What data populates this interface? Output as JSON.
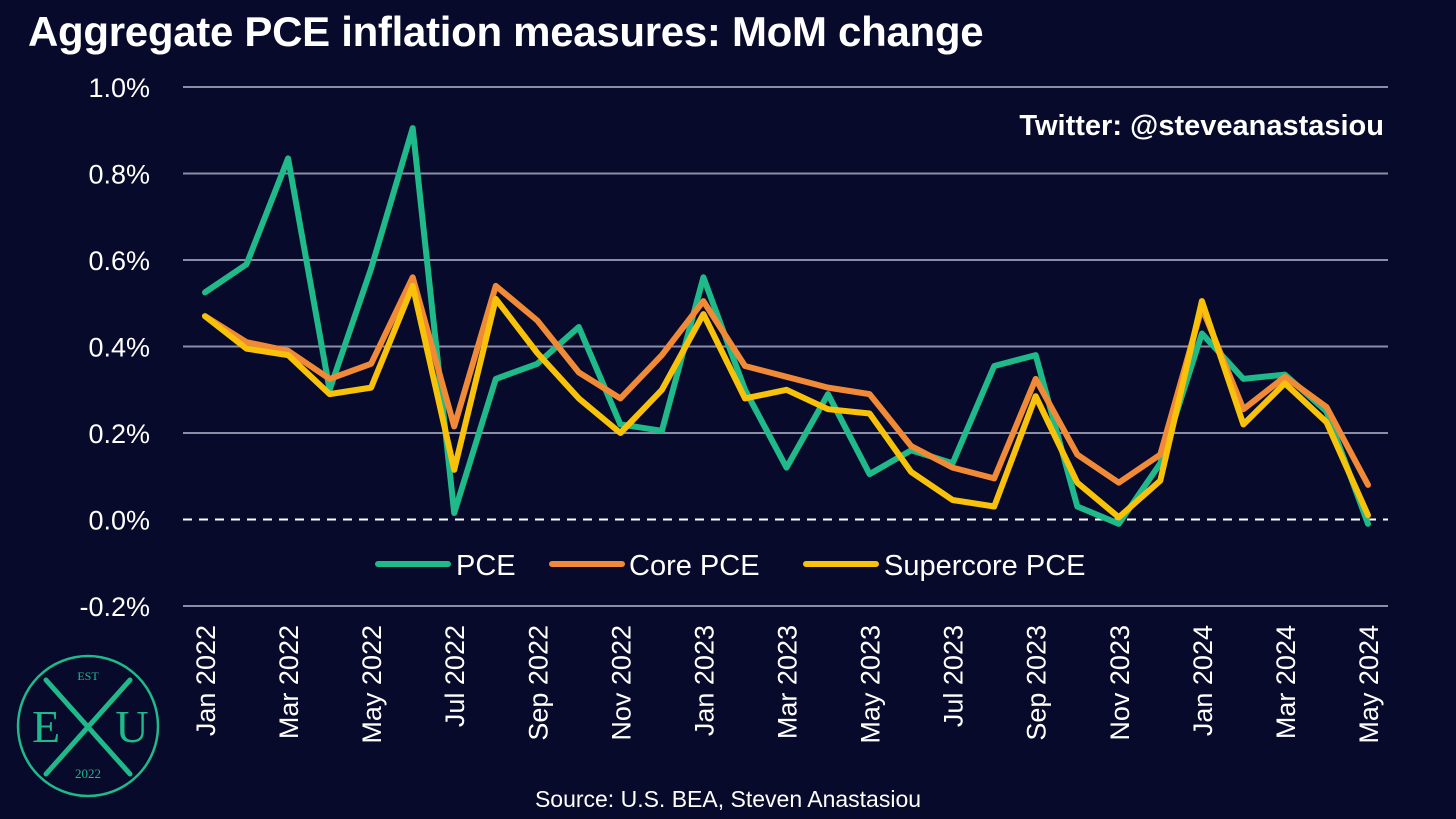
{
  "title": "Aggregate PCE inflation measures: MoM change",
  "watermark": "Twitter: @steveanastasiou",
  "source": "Source: U.S. BEA, Steven Anastasiou",
  "logo": {
    "est": "EST",
    "left": "E",
    "right": "U",
    "year": "2022",
    "color": "#1fb98a"
  },
  "colors": {
    "background": "#070a2b",
    "grid": "#8a8ea6",
    "zero_line": "#ffffff"
  },
  "chart_data": {
    "type": "line",
    "ylim": [
      -0.2,
      1.0
    ],
    "yticks": [
      1.0,
      0.8,
      0.6,
      0.4,
      0.2,
      0.0,
      -0.2
    ],
    "ytick_labels": [
      "1.0%",
      "0.8%",
      "0.6%",
      "0.4%",
      "0.2%",
      "0.0%",
      "-0.2%"
    ],
    "zero_line": "dashed",
    "grid": true,
    "legend": "bottom-center",
    "x": [
      "Jan 2022",
      "Feb 2022",
      "Mar 2022",
      "Apr 2022",
      "May 2022",
      "Jun 2022",
      "Jul 2022",
      "Aug 2022",
      "Sep 2022",
      "Oct 2022",
      "Nov 2022",
      "Dec 2022",
      "Jan 2023",
      "Feb 2023",
      "Mar 2023",
      "Apr 2023",
      "May 2023",
      "Jun 2023",
      "Jul 2023",
      "Aug 2023",
      "Sep 2023",
      "Oct 2023",
      "Nov 2023",
      "Dec 2023",
      "Jan 2024",
      "Feb 2024",
      "Mar 2024",
      "Apr 2024",
      "May 2024"
    ],
    "xtick_labels": [
      "Jan 2022",
      "Mar 2022",
      "May 2022",
      "Jul 2022",
      "Sep 2022",
      "Nov 2022",
      "Jan 2023",
      "Mar 2023",
      "May 2023",
      "Jul 2023",
      "Sep 2023",
      "Nov 2023",
      "Jan 2024",
      "Mar 2024",
      "May 2024"
    ],
    "series": [
      {
        "name": "PCE",
        "color": "#1fb98a",
        "values": [
          0.525,
          0.59,
          0.835,
          0.3,
          0.58,
          0.905,
          0.015,
          0.325,
          0.36,
          0.445,
          0.22,
          0.205,
          0.56,
          0.3,
          0.12,
          0.29,
          0.105,
          0.16,
          0.13,
          0.355,
          0.38,
          0.03,
          -0.01,
          0.13,
          0.43,
          0.325,
          0.335,
          0.25,
          -0.01
        ]
      },
      {
        "name": "Core PCE",
        "color": "#f08a36",
        "values": [
          0.47,
          0.41,
          0.39,
          0.325,
          0.36,
          0.56,
          0.215,
          0.54,
          0.46,
          0.34,
          0.28,
          0.38,
          0.505,
          0.355,
          0.33,
          0.305,
          0.29,
          0.17,
          0.12,
          0.095,
          0.325,
          0.15,
          0.085,
          0.15,
          0.49,
          0.255,
          0.33,
          0.26,
          0.08
        ]
      },
      {
        "name": "Supercore PCE",
        "color": "#f9c20a",
        "values": [
          0.47,
          0.395,
          0.38,
          0.29,
          0.305,
          0.54,
          0.115,
          0.51,
          0.385,
          0.28,
          0.2,
          0.3,
          0.475,
          0.28,
          0.3,
          0.255,
          0.245,
          0.11,
          0.045,
          0.03,
          0.285,
          0.085,
          0.005,
          0.09,
          0.505,
          0.22,
          0.315,
          0.225,
          0.01
        ]
      }
    ]
  }
}
